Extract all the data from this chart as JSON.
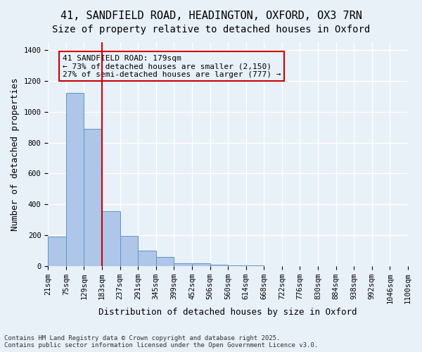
{
  "title_line1": "41, SANDFIELD ROAD, HEADINGTON, OXFORD, OX3 7RN",
  "title_line2": "Size of property relative to detached houses in Oxford",
  "xlabel": "Distribution of detached houses by size in Oxford",
  "ylabel": "Number of detached properties",
  "bin_labels": [
    "21sqm",
    "75sqm",
    "129sqm",
    "183sqm",
    "237sqm",
    "291sqm",
    "345sqm",
    "399sqm",
    "452sqm",
    "506sqm",
    "560sqm",
    "614sqm",
    "668sqm",
    "722sqm",
    "776sqm",
    "830sqm",
    "884sqm",
    "938sqm",
    "992sqm",
    "1046sqm",
    "1100sqm"
  ],
  "bar_values": [
    190,
    1120,
    890,
    355,
    195,
    100,
    60,
    20,
    18,
    10,
    5,
    3,
    2,
    1,
    0,
    0,
    0,
    0,
    0,
    0
  ],
  "bar_color": "#aec6e8",
  "bar_edge_color": "#5a96c8",
  "vline_color": "#cc0000",
  "vline_pos": 2.5,
  "annotation_text": "41 SANDFIELD ROAD: 179sqm\n← 73% of detached houses are smaller (2,150)\n27% of semi-detached houses are larger (777) →",
  "annotation_box_color": "#cc0000",
  "annotation_text_color": "#000000",
  "ylim": [
    0,
    1450
  ],
  "yticks": [
    0,
    200,
    400,
    600,
    800,
    1000,
    1200,
    1400
  ],
  "bg_color": "#e8f0f8",
  "grid_color": "#ffffff",
  "footer_line1": "Contains HM Land Registry data © Crown copyright and database right 2025.",
  "footer_line2": "Contains public sector information licensed under the Open Government Licence v3.0.",
  "title_fontsize": 11,
  "subtitle_fontsize": 10,
  "axis_label_fontsize": 9,
  "tick_fontsize": 7.5,
  "annotation_fontsize": 8
}
